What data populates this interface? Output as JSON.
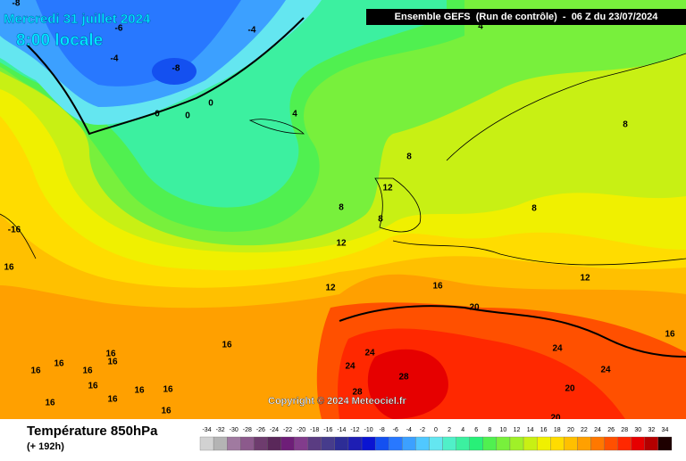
{
  "header": {
    "date": "Mercredi 31 juillet 2024",
    "time": "8:00 locale",
    "run": "Ensemble GEFS  (Run de contrôle)  -  06 Z du 23/07/2024"
  },
  "copyright": "Copyright © 2024 Meteociel.fr",
  "footer": {
    "title": "Température 850hPa",
    "lead": "(+ 192h)"
  },
  "legend": {
    "values": [
      -34,
      -32,
      -30,
      -28,
      -26,
      -24,
      -22,
      -20,
      -18,
      -16,
      -14,
      -12,
      -10,
      -8,
      -6,
      -4,
      -2,
      0,
      2,
      4,
      6,
      8,
      10,
      12,
      14,
      16,
      18,
      20,
      22,
      24,
      26,
      28,
      30,
      32,
      34
    ],
    "colors": [
      "#d2d2d2",
      "#b4b4b4",
      "#a07aa0",
      "#8c5a8c",
      "#6e3c6e",
      "#5a285a",
      "#6e1e78",
      "#823c8c",
      "#5a3c82",
      "#463c8c",
      "#2d2d96",
      "#1e1eb4",
      "#0a14d2",
      "#1450f0",
      "#2878ff",
      "#3ca0ff",
      "#50c8ff",
      "#64e6f0",
      "#50f0c8",
      "#3cf0a0",
      "#28f078",
      "#50f050",
      "#78f03c",
      "#a0f028",
      "#c8f014",
      "#f0f000",
      "#ffdc00",
      "#ffc000",
      "#ffa000",
      "#ff7800",
      "#ff5000",
      "#ff2800",
      "#e60000",
      "#b40000",
      "#1e0000"
    ]
  },
  "contour_labels": [
    -8,
    -6,
    -4,
    -4,
    -8,
    0,
    0,
    0,
    4,
    4,
    8,
    8,
    12,
    8,
    8,
    8,
    -16,
    16,
    12,
    12,
    16,
    20,
    12,
    16,
    24,
    24,
    28,
    28,
    24,
    20,
    20,
    16,
    24,
    16,
    16,
    16,
    16,
    16,
    16,
    16,
    16,
    16,
    16,
    16
  ]
}
